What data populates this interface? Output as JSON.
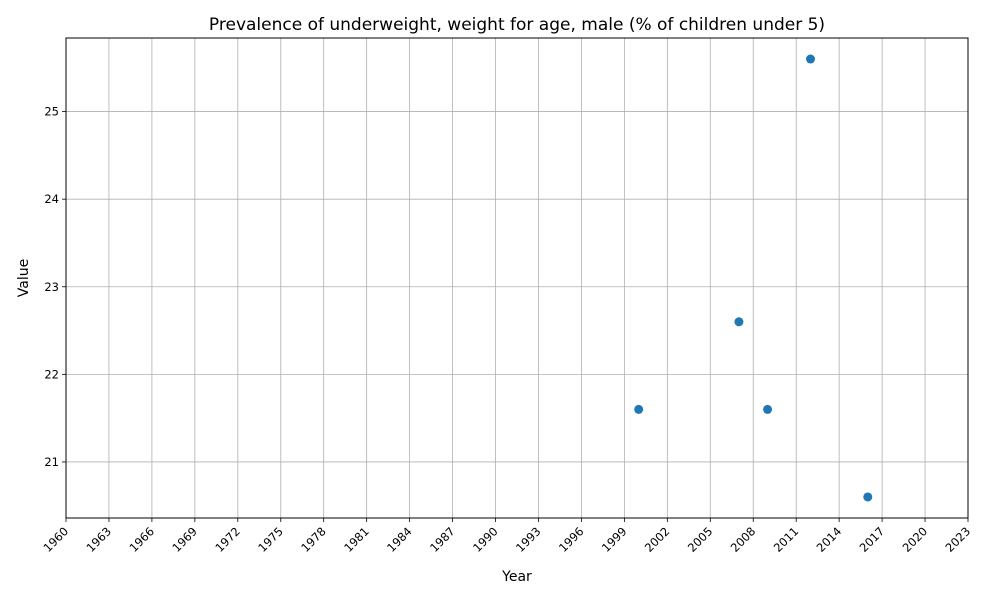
{
  "chart_data": {
    "type": "scatter",
    "title": "Prevalence of underweight, weight for age, male (% of children under 5)",
    "xlabel": "Year",
    "ylabel": "Value",
    "xlim": [
      1960,
      2023
    ],
    "ylim": [
      20.36,
      25.84
    ],
    "x_ticks": [
      "1960",
      "1963",
      "1966",
      "1969",
      "1972",
      "1975",
      "1978",
      "1981",
      "1984",
      "1987",
      "1990",
      "1993",
      "1996",
      "1999",
      "2002",
      "2005",
      "2008",
      "2011",
      "2014",
      "2017",
      "2020",
      "2023"
    ],
    "y_ticks": [
      "21",
      "22",
      "23",
      "24",
      "25"
    ],
    "grid": true,
    "series": [
      {
        "color": "#1f77b4",
        "points": [
          {
            "x": 2000,
            "y": 21.6
          },
          {
            "x": 2007,
            "y": 22.6
          },
          {
            "x": 2009,
            "y": 21.6
          },
          {
            "x": 2012,
            "y": 25.6
          },
          {
            "x": 2016,
            "y": 20.6
          }
        ]
      }
    ]
  }
}
